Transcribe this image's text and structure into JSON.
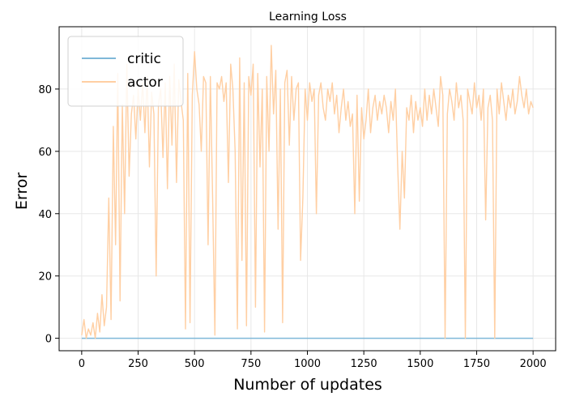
{
  "chart_data": {
    "type": "line",
    "title": "Learning Loss",
    "xlabel": "Number of updates",
    "ylabel": "Error",
    "xlim": [
      -100,
      2100
    ],
    "ylim": [
      -4,
      100
    ],
    "xticks": [
      0,
      250,
      500,
      750,
      1000,
      1250,
      1500,
      1750,
      2000
    ],
    "yticks": [
      0,
      20,
      40,
      60,
      80
    ],
    "grid": true,
    "legend_position": "top-left",
    "series": [
      {
        "name": "critic",
        "color": "#7fb8d8",
        "x": [
          0,
          2000
        ],
        "y": [
          0,
          0
        ]
      },
      {
        "name": "actor",
        "color": "#ffcfa3",
        "x": [
          0,
          10,
          20,
          30,
          40,
          50,
          60,
          70,
          80,
          90,
          100,
          110,
          120,
          130,
          140,
          150,
          160,
          170,
          180,
          190,
          200,
          210,
          220,
          230,
          240,
          250,
          260,
          270,
          280,
          290,
          300,
          310,
          320,
          330,
          340,
          350,
          360,
          370,
          380,
          390,
          400,
          410,
          420,
          430,
          440,
          450,
          460,
          470,
          480,
          490,
          500,
          510,
          520,
          530,
          540,
          550,
          560,
          570,
          580,
          590,
          600,
          610,
          620,
          630,
          640,
          650,
          660,
          670,
          680,
          690,
          700,
          710,
          720,
          730,
          740,
          750,
          760,
          770,
          780,
          790,
          800,
          810,
          820,
          830,
          840,
          850,
          860,
          870,
          880,
          890,
          900,
          910,
          920,
          930,
          940,
          950,
          960,
          970,
          980,
          990,
          1000,
          1010,
          1020,
          1030,
          1040,
          1050,
          1060,
          1070,
          1080,
          1090,
          1100,
          1110,
          1120,
          1130,
          1140,
          1150,
          1160,
          1170,
          1180,
          1190,
          1200,
          1210,
          1220,
          1230,
          1240,
          1250,
          1260,
          1270,
          1280,
          1290,
          1300,
          1310,
          1320,
          1330,
          1340,
          1350,
          1360,
          1370,
          1380,
          1390,
          1400,
          1410,
          1420,
          1430,
          1440,
          1450,
          1460,
          1470,
          1480,
          1490,
          1500,
          1510,
          1520,
          1530,
          1540,
          1550,
          1560,
          1570,
          1580,
          1590,
          1600,
          1610,
          1620,
          1630,
          1640,
          1650,
          1660,
          1670,
          1680,
          1690,
          1700,
          1710,
          1720,
          1730,
          1740,
          1750,
          1760,
          1770,
          1780,
          1790,
          1800,
          1810,
          1820,
          1830,
          1840,
          1850,
          1860,
          1870,
          1880,
          1890,
          1900,
          1910,
          1920,
          1930,
          1940,
          1950,
          1960,
          1970,
          1980,
          1990,
          2000
        ],
        "y": [
          1,
          6,
          0,
          3,
          1,
          5,
          0,
          8,
          2,
          14,
          4,
          10,
          45,
          6,
          68,
          30,
          85,
          12,
          75,
          40,
          88,
          52,
          72,
          78,
          64,
          80,
          70,
          82,
          66,
          84,
          55,
          79,
          72,
          20,
          75,
          80,
          58,
          82,
          48,
          84,
          62,
          88,
          50,
          83,
          76,
          70,
          3,
          85,
          5,
          78,
          92,
          80,
          75,
          60,
          84,
          82,
          30,
          84,
          45,
          1,
          82,
          80,
          84,
          76,
          82,
          50,
          88,
          80,
          60,
          3,
          90,
          25,
          82,
          4,
          84,
          78,
          88,
          10,
          85,
          55,
          80,
          2,
          84,
          60,
          94,
          72,
          86,
          35,
          80,
          5,
          82,
          86,
          62,
          84,
          70,
          80,
          82,
          25,
          45,
          80,
          70,
          82,
          76,
          80,
          40,
          78,
          82,
          74,
          70,
          80,
          76,
          82,
          72,
          78,
          66,
          74,
          80,
          70,
          76,
          68,
          72,
          40,
          78,
          44,
          74,
          64,
          70,
          80,
          66,
          74,
          78,
          70,
          76,
          72,
          78,
          74,
          66,
          76,
          70,
          80,
          55,
          35,
          60,
          45,
          74,
          70,
          78,
          66,
          76,
          70,
          74,
          68,
          80,
          70,
          78,
          72,
          80,
          74,
          68,
          84,
          78,
          0,
          72,
          80,
          76,
          70,
          82,
          74,
          78,
          70,
          0,
          80,
          76,
          72,
          82,
          74,
          78,
          70,
          80,
          38,
          74,
          78,
          70,
          0,
          80,
          72,
          82,
          76,
          70,
          78,
          74,
          80,
          72,
          76,
          84,
          78,
          74,
          80,
          72,
          76,
          74
        ]
      }
    ]
  }
}
